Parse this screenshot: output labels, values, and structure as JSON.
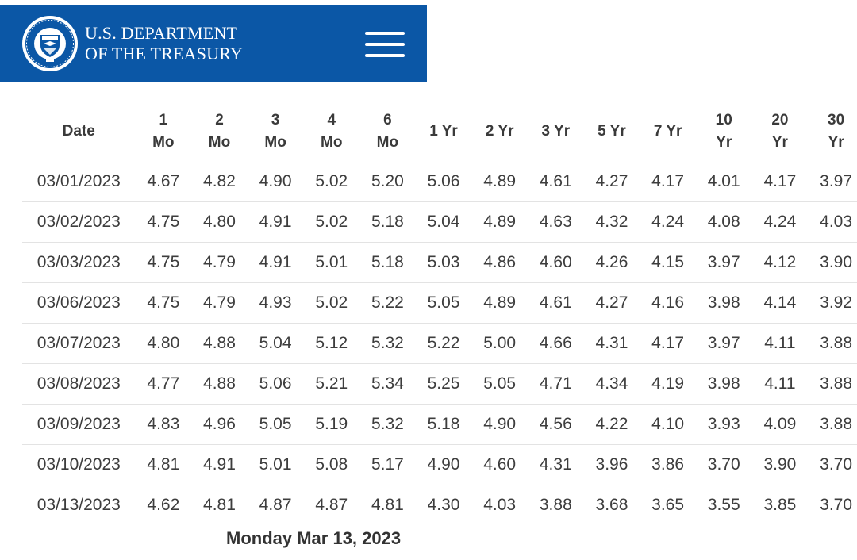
{
  "header": {
    "brand_line1": "U.S. DEPARTMENT",
    "brand_line2": "OF THE TREASURY",
    "seal_icon": "treasury-seal-icon",
    "menu_icon": "hamburger-menu-icon",
    "colors": {
      "header_bg": "#0b57a6",
      "text": "#ffffff"
    }
  },
  "table": {
    "headers": [
      [
        "Date"
      ],
      [
        "1",
        "Mo"
      ],
      [
        "2",
        "Mo"
      ],
      [
        "3",
        "Mo"
      ],
      [
        "4",
        "Mo"
      ],
      [
        "6",
        "Mo"
      ],
      [
        "1 Yr"
      ],
      [
        "2 Yr"
      ],
      [
        "3 Yr"
      ],
      [
        "5 Yr"
      ],
      [
        "7 Yr"
      ],
      [
        "10",
        "Yr"
      ],
      [
        "20",
        "Yr"
      ],
      [
        "30",
        "Yr"
      ]
    ],
    "rows": [
      [
        "03/01/2023",
        "4.67",
        "4.82",
        "4.90",
        "5.02",
        "5.20",
        "5.06",
        "4.89",
        "4.61",
        "4.27",
        "4.17",
        "4.01",
        "4.17",
        "3.97"
      ],
      [
        "03/02/2023",
        "4.75",
        "4.80",
        "4.91",
        "5.02",
        "5.18",
        "5.04",
        "4.89",
        "4.63",
        "4.32",
        "4.24",
        "4.08",
        "4.24",
        "4.03"
      ],
      [
        "03/03/2023",
        "4.75",
        "4.79",
        "4.91",
        "5.01",
        "5.18",
        "5.03",
        "4.86",
        "4.60",
        "4.26",
        "4.15",
        "3.97",
        "4.12",
        "3.90"
      ],
      [
        "03/06/2023",
        "4.75",
        "4.79",
        "4.93",
        "5.02",
        "5.22",
        "5.05",
        "4.89",
        "4.61",
        "4.27",
        "4.16",
        "3.98",
        "4.14",
        "3.92"
      ],
      [
        "03/07/2023",
        "4.80",
        "4.88",
        "5.04",
        "5.12",
        "5.32",
        "5.22",
        "5.00",
        "4.66",
        "4.31",
        "4.17",
        "3.97",
        "4.11",
        "3.88"
      ],
      [
        "03/08/2023",
        "4.77",
        "4.88",
        "5.06",
        "5.21",
        "5.34",
        "5.25",
        "5.05",
        "4.71",
        "4.34",
        "4.19",
        "3.98",
        "4.11",
        "3.88"
      ],
      [
        "03/09/2023",
        "4.83",
        "4.96",
        "5.05",
        "5.19",
        "5.32",
        "5.18",
        "4.90",
        "4.56",
        "4.22",
        "4.10",
        "3.93",
        "4.09",
        "3.88"
      ],
      [
        "03/10/2023",
        "4.81",
        "4.91",
        "5.01",
        "5.08",
        "5.17",
        "4.90",
        "4.60",
        "4.31",
        "3.96",
        "3.86",
        "3.70",
        "3.90",
        "3.70"
      ],
      [
        "03/13/2023",
        "4.62",
        "4.81",
        "4.87",
        "4.87",
        "4.81",
        "4.30",
        "4.03",
        "3.88",
        "3.68",
        "3.65",
        "3.55",
        "3.85",
        "3.70"
      ]
    ]
  },
  "footer": {
    "date_label": "Monday Mar 13, 2023"
  }
}
